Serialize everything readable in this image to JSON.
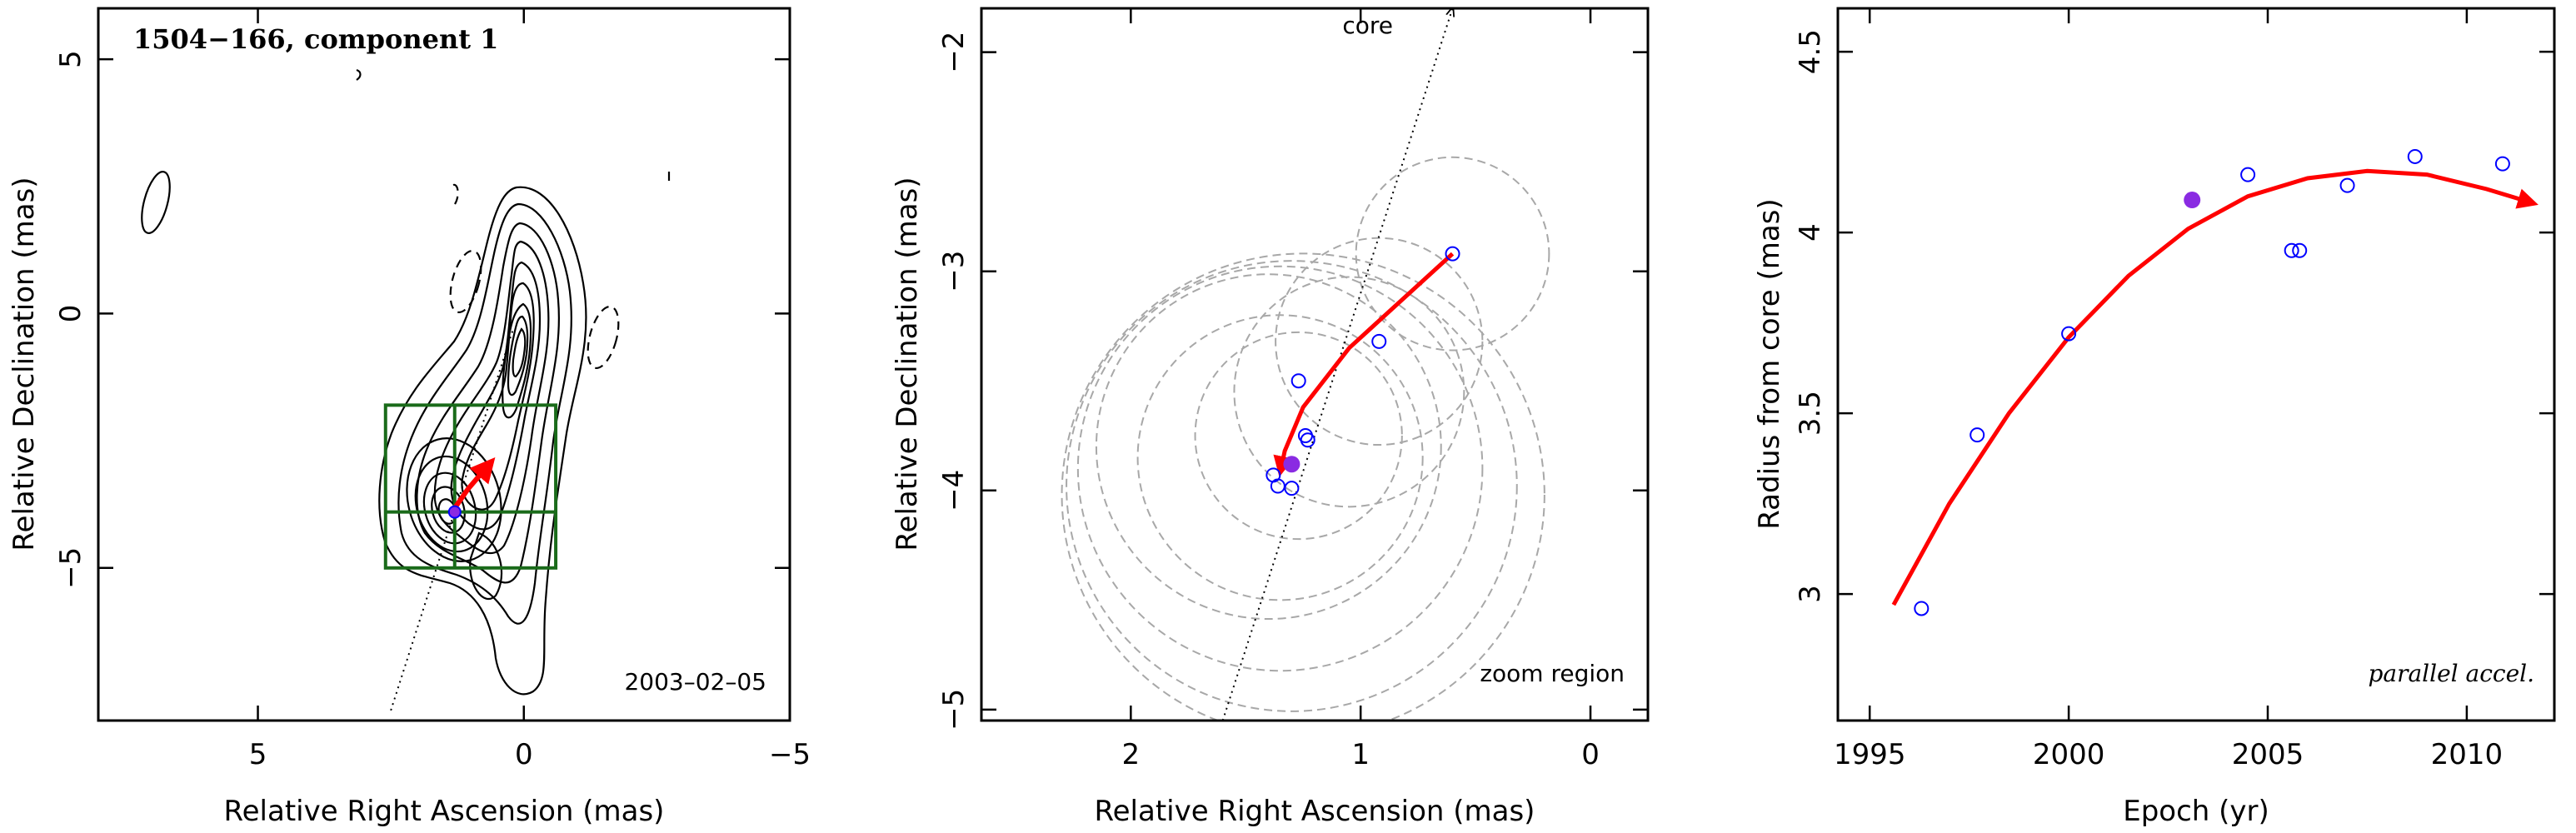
{
  "colors": {
    "track": "#ff0000",
    "open_point": "#0000ff",
    "filled_point": "#8a2be2",
    "zoom_box": "#1a6b1a",
    "beam_circle": "#a8a8a8"
  },
  "chart_data": [
    {
      "type": "contour",
      "title": "1504−166, component 1",
      "xlabel": "Relative Right Ascension (mas)",
      "ylabel": "Relative Declination (mas)",
      "xlim": [
        8,
        -5
      ],
      "ylim": [
        -8,
        6
      ],
      "xticks": [
        5,
        0,
        -5
      ],
      "yticks": [
        5,
        0,
        -5
      ],
      "xtick_labels": [
        "5",
        "0",
        "−5"
      ],
      "ytick_labels": [
        "5",
        "0",
        "−5"
      ],
      "date_label": "2003–02–05",
      "component_position": [
        1.3,
        -3.9
      ],
      "zoom_box": {
        "x": [
          -0.6,
          2.6
        ],
        "y": [
          -5.0,
          -1.8
        ]
      },
      "core_direction_line": [
        [
          2.5,
          -7.8
        ],
        [
          0.2,
          -0.3
        ]
      ],
      "track": [
        [
          1.35,
          -3.9
        ],
        [
          1.05,
          -3.45
        ],
        [
          0.6,
          -2.9
        ]
      ],
      "grid": false
    },
    {
      "type": "scatter",
      "title": "",
      "xlabel": "Relative Right Ascension (mas)",
      "ylabel": "Relative Declination (mas)",
      "xlim": [
        2.65,
        -0.25
      ],
      "ylim": [
        -5.05,
        -1.8
      ],
      "xticks": [
        2,
        1,
        0
      ],
      "yticks": [
        -2,
        -3,
        -4,
        -5
      ],
      "xtick_labels": [
        "2",
        "1",
        "0"
      ],
      "ytick_labels": [
        "−2",
        "−3",
        "−4",
        "−5"
      ],
      "core_label": "core",
      "zoom_label": "zoom region",
      "points_open": [
        {
          "x": 0.6,
          "y": -2.92
        },
        {
          "x": 0.92,
          "y": -3.32
        },
        {
          "x": 1.27,
          "y": -3.5
        },
        {
          "x": 1.23,
          "y": -3.77
        },
        {
          "x": 1.24,
          "y": -3.75
        },
        {
          "x": 1.38,
          "y": -3.93
        },
        {
          "x": 1.36,
          "y": -3.98
        },
        {
          "x": 1.3,
          "y": -3.99
        }
      ],
      "points_filled": [
        {
          "x": 1.3,
          "y": -3.88
        }
      ],
      "beam_circles": [
        {
          "x": 0.6,
          "y": -2.92,
          "r": 0.42
        },
        {
          "x": 0.92,
          "y": -3.32,
          "r": 0.45
        },
        {
          "x": 1.05,
          "y": -3.55,
          "r": 0.5
        },
        {
          "x": 1.27,
          "y": -3.75,
          "r": 0.45
        },
        {
          "x": 1.35,
          "y": -3.85,
          "r": 0.62
        },
        {
          "x": 1.4,
          "y": -3.8,
          "r": 0.75
        },
        {
          "x": 1.35,
          "y": -3.9,
          "r": 0.88
        },
        {
          "x": 1.3,
          "y": -3.98,
          "r": 0.98
        },
        {
          "x": 1.25,
          "y": -4.02,
          "r": 1.05
        }
      ],
      "core_direction_line": [
        [
          1.6,
          -5.05
        ],
        [
          0.6,
          -1.8
        ]
      ],
      "track": [
        [
          1.35,
          -3.92
        ],
        [
          1.33,
          -3.82
        ],
        [
          1.25,
          -3.62
        ],
        [
          1.05,
          -3.35
        ],
        [
          0.6,
          -2.92
        ]
      ],
      "grid": false
    },
    {
      "type": "scatter",
      "title": "",
      "xlabel": "Epoch (yr)",
      "ylabel": "Radius from core (mas)",
      "xlim": [
        1994.2,
        2012.2
      ],
      "ylim": [
        2.65,
        4.62
      ],
      "xticks": [
        1995,
        2000,
        2005,
        2010
      ],
      "yticks": [
        3,
        3.5,
        4,
        4.5
      ],
      "xtick_labels": [
        "1995",
        "2000",
        "2005",
        "2010"
      ],
      "ytick_labels": [
        "3",
        "3.5",
        "4",
        "4.5"
      ],
      "annotation": "parallel accel.",
      "points_open": [
        {
          "x": 1996.3,
          "y": 2.96
        },
        {
          "x": 1997.7,
          "y": 3.44
        },
        {
          "x": 2000.0,
          "y": 3.72
        },
        {
          "x": 2004.5,
          "y": 4.16
        },
        {
          "x": 2005.6,
          "y": 3.95
        },
        {
          "x": 2005.8,
          "y": 3.95
        },
        {
          "x": 2007.0,
          "y": 4.13
        },
        {
          "x": 2008.7,
          "y": 4.21
        },
        {
          "x": 2010.9,
          "y": 4.19
        }
      ],
      "points_filled": [
        {
          "x": 2003.1,
          "y": 4.09
        }
      ],
      "fit_curve": {
        "x": [
          1995.6,
          1997,
          1998.5,
          2000,
          2001.5,
          2003,
          2004.5,
          2006,
          2007.5,
          2009,
          2010.5,
          2011.7
        ],
        "y": [
          2.97,
          3.25,
          3.5,
          3.71,
          3.88,
          4.01,
          4.1,
          4.15,
          4.17,
          4.16,
          4.12,
          4.08
        ]
      },
      "grid": false
    }
  ]
}
